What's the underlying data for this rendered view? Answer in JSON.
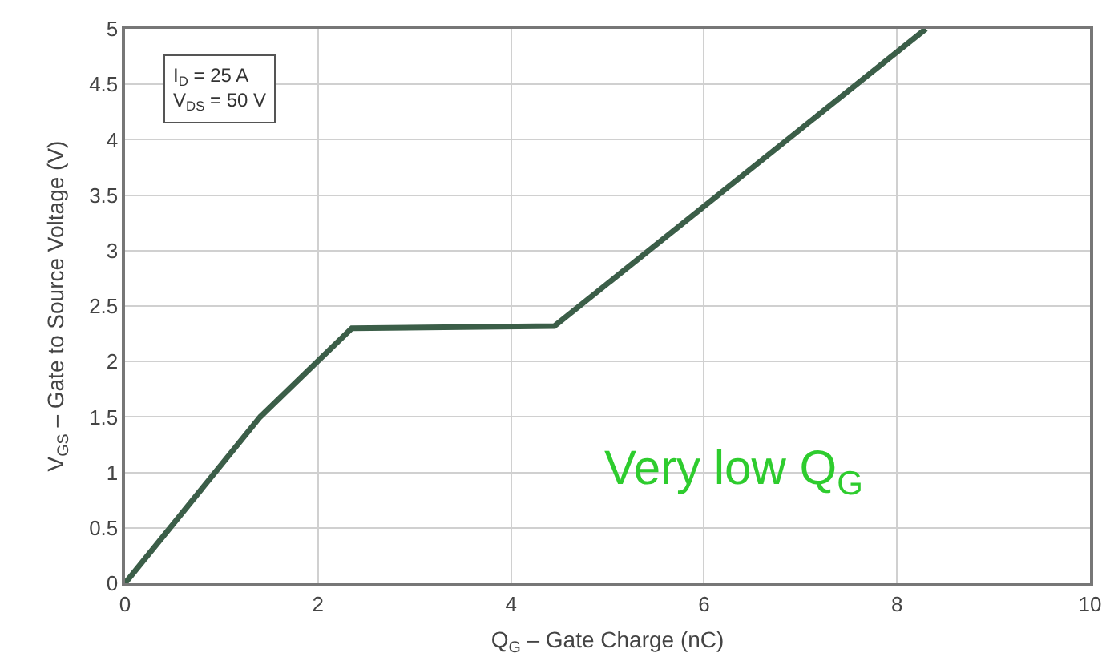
{
  "chart_data": {
    "type": "line",
    "xlabel": "Q$_{G}$ – Gate Charge (nC)",
    "ylabel": "V$_{GS}$ – Gate to Source Voltage (V)",
    "x": [
      0,
      1.4,
      2.35,
      4.45,
      8.3
    ],
    "series": [
      {
        "color": "#3b5e48",
        "values": [
          0,
          1.5,
          2.3,
          2.32,
          5
        ]
      }
    ],
    "xlim": [
      0,
      10
    ],
    "xticks": [
      0,
      2,
      4,
      6,
      8,
      10
    ],
    "ylim": [
      0,
      5
    ],
    "yticks": [
      0,
      0.5,
      1,
      1.5,
      2,
      2.5,
      3,
      3.5,
      4,
      4.5,
      5
    ],
    "grid": true,
    "marker": "none",
    "line_style": "solid",
    "annotations": [
      "I$_{D}$ = 25 A",
      "V$_{DS}$ = 50 V",
      "Very low Q$_{G}$"
    ]
  }
}
